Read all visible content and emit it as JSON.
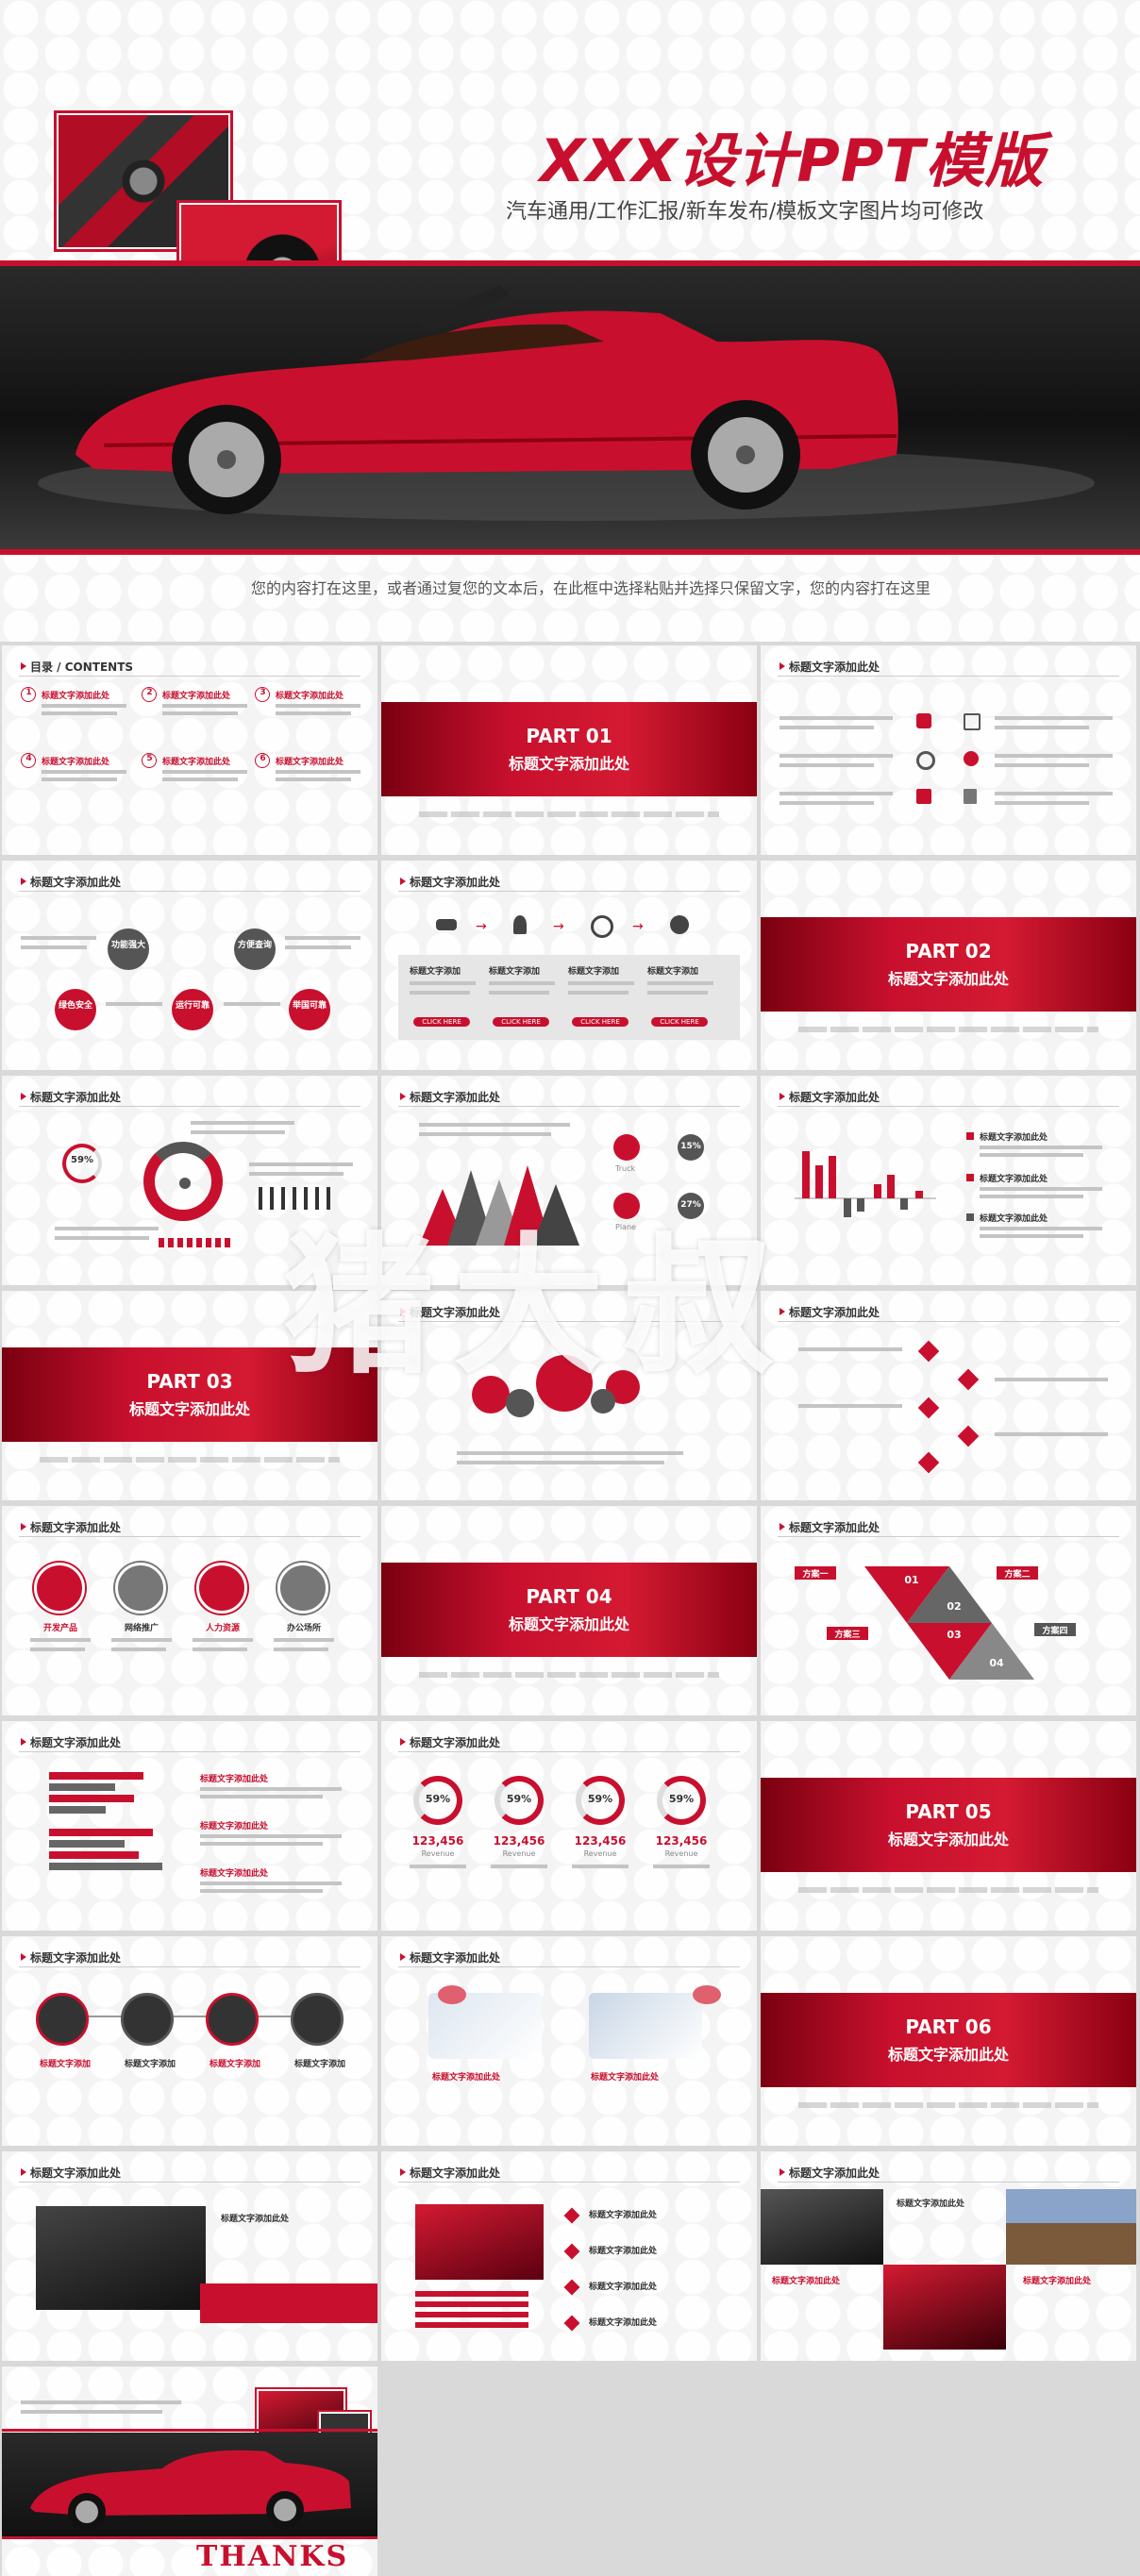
{
  "cover": {
    "title": "XXX设计PPT模版",
    "subtitle": "汽车通用/工作汇报/新车发布/模板文字图片均可修改",
    "body": "您的内容打在这里，或者通过复您的文本后，在此框中选择粘贴并选择只保留文字，您的内容打在这里"
  },
  "common": {
    "section_title": "标题文字添加此处",
    "contents_title": "目录 / CONTENTS"
  },
  "contents": {
    "items": [
      {
        "num": "1",
        "label": "标题文字添加此处"
      },
      {
        "num": "2",
        "label": "标题文字添加此处"
      },
      {
        "num": "3",
        "label": "标题文字添加此处"
      },
      {
        "num": "4",
        "label": "标题文字添加此处"
      },
      {
        "num": "5",
        "label": "标题文字添加此处"
      },
      {
        "num": "6",
        "label": "标题文字添加此处"
      }
    ]
  },
  "parts": [
    {
      "label": "PART 01",
      "title": "标题文字添加此处"
    },
    {
      "label": "PART 02",
      "title": "标题文字添加此处"
    },
    {
      "label": "PART 03",
      "title": "标题文字添加此处"
    },
    {
      "label": "PART 04",
      "title": "标题文字添加此处"
    },
    {
      "label": "PART 05",
      "title": "标题文字添加此处"
    },
    {
      "label": "PART 06",
      "title": "标题文字添加此处"
    }
  ],
  "features": {
    "top": [
      "功能强大",
      "方便查询"
    ],
    "bottom": [
      "绿色安全",
      "运行可靠",
      "举国可靠"
    ]
  },
  "process": {
    "step_label": "标题文字添加",
    "button": "CLICK HERE"
  },
  "donut_slide": {
    "percent": "59%"
  },
  "triangle_slide": {
    "pct1": "15%",
    "pct2": "27%",
    "icon1": "Truck",
    "icon2": "Plane"
  },
  "products": {
    "labels": [
      "开发产品",
      "网络推广",
      "人力资源",
      "办公场所"
    ]
  },
  "schemes": {
    "labels": [
      "方案一",
      "方案二",
      "方案三",
      "方案四"
    ],
    "nums": [
      "01",
      "02",
      "03",
      "04"
    ]
  },
  "revenue": {
    "items": [
      {
        "pct": "59%",
        "value": "123,456",
        "label": "Revenue"
      },
      {
        "pct": "59%",
        "value": "123,456",
        "label": "Revenue"
      },
      {
        "pct": "59%",
        "value": "123,456",
        "label": "Revenue"
      },
      {
        "pct": "59%",
        "value": "123,456",
        "label": "Revenue"
      }
    ]
  },
  "thanks": "THANKS",
  "watermark": "猪大叔",
  "colors": {
    "accent": "#c8102e",
    "dark": "#555555"
  }
}
